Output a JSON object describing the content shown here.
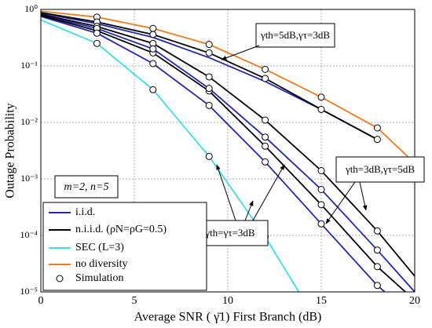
{
  "chart_data": {
    "type": "line",
    "log_y": true,
    "grid": true,
    "legend": "lower left",
    "xlabel": "Average SNR ( γ̄1) First Branch (dB)",
    "ylabel": "Outage Probability",
    "xlim": [
      0,
      20
    ],
    "xticks": [
      0,
      5,
      10,
      15,
      20
    ],
    "ylim": [
      1e-05,
      1
    ],
    "yticks": [
      {
        "value": 1e-05,
        "label": "10⁻⁵"
      },
      {
        "value": 0.0001,
        "label": "10⁻⁴"
      },
      {
        "value": 0.001,
        "label": "10⁻³"
      },
      {
        "value": 0.01,
        "label": "10⁻²"
      },
      {
        "value": 0.1,
        "label": "10⁻¹"
      },
      {
        "value": 1,
        "label": "10⁰"
      }
    ],
    "annotations": [
      "γth=5dB,γτ=3dB",
      "γth=3dB,γτ=5dB",
      "γth=γτ=3dB",
      "m=2, n=5"
    ],
    "series": [
      {
        "name": "i.i.d.",
        "color": "#2626a8",
        "curves": [
          {
            "x": [
              0,
              3,
              6,
              9,
              12,
              15,
              18
            ],
            "values": [
              0.86,
              0.56,
              0.32,
              0.14,
              0.053,
              0.017,
              0.005
            ]
          },
          {
            "x": [
              0,
              3,
              6,
              9,
              12,
              15,
              18,
              20
            ],
            "values": [
              0.8,
              0.46,
              0.2,
              0.04,
              0.0055,
              0.00065,
              5.5e-05,
              1e-05
            ]
          },
          {
            "x": [
              0,
              3,
              6,
              9,
              12,
              15,
              18,
              18.4
            ],
            "values": [
              0.75,
              0.38,
              0.11,
              0.02,
              0.002,
              0.00016,
              1.3e-05,
              1e-05
            ]
          }
        ]
      },
      {
        "name": "n.i.i.d. (ρN=ρG=0.5)",
        "color": "#000000",
        "curves": [
          {
            "x": [
              0,
              3,
              6,
              9,
              12,
              15,
              18
            ],
            "values": [
              0.88,
              0.6,
              0.36,
              0.17,
              0.06,
              0.017,
              0.005
            ]
          },
          {
            "x": [
              0,
              3,
              6,
              9,
              12,
              15,
              18,
              20
            ],
            "values": [
              0.82,
              0.5,
              0.25,
              0.064,
              0.011,
              0.0014,
              0.00012,
              1.9e-05
            ]
          },
          {
            "x": [
              0,
              3,
              6,
              9,
              12,
              15,
              18,
              19.5
            ],
            "values": [
              0.78,
              0.42,
              0.17,
              0.036,
              0.0038,
              0.00035,
              2.8e-05,
              1e-05
            ]
          }
        ]
      },
      {
        "name": "SEC (L=3)",
        "color": "#3fdede",
        "curves": [
          {
            "x": [
              0,
              3,
              6,
              9,
              12,
              13.8
            ],
            "values": [
              0.65,
              0.25,
              0.038,
              0.0025,
              9.5e-05,
              1e-05
            ]
          }
        ]
      },
      {
        "name": "no diversity",
        "color": "#ee7b22",
        "curves": [
          {
            "x": [
              0,
              3,
              6,
              9,
              12,
              15,
              18,
              20
            ],
            "values": [
              0.93,
              0.73,
              0.46,
              0.24,
              0.087,
              0.028,
              0.008,
              0.0019
            ]
          }
        ]
      },
      {
        "name": "Simulation",
        "color": "#000000",
        "marker": "circle",
        "x": [
          3,
          6,
          9,
          12,
          15,
          18,
          3,
          6,
          9,
          12,
          15,
          18,
          3,
          6,
          9,
          12,
          15,
          18,
          3,
          6,
          9,
          12,
          15,
          18,
          3,
          6,
          9,
          12,
          15,
          18,
          3,
          6,
          9,
          12,
          15,
          18,
          3,
          6,
          9,
          12
        ],
        "values": [
          0.73,
          0.46,
          0.24,
          0.087,
          0.028,
          0.008,
          0.6,
          0.36,
          0.17,
          0.06,
          0.017,
          0.005,
          0.5,
          0.25,
          0.064,
          0.011,
          0.0014,
          0.00012,
          0.42,
          0.17,
          0.036,
          0.0038,
          0.00035,
          2.8e-05,
          0.46,
          0.2,
          0.04,
          0.0055,
          0.00065,
          5.5e-05,
          0.38,
          0.11,
          0.02,
          0.002,
          0.00016,
          1.3e-05,
          0.25,
          0.038,
          0.0025,
          9.5e-05
        ]
      }
    ]
  }
}
